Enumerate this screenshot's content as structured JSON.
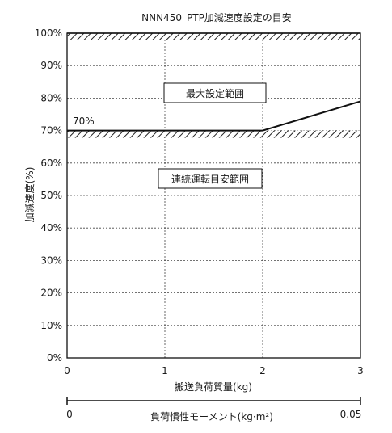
{
  "chart_data": {
    "type": "line",
    "title": "NNN450_PTP加減速度設定の目安",
    "xlabel": "搬送負荷質量(kg)",
    "ylabel": "加減速度(%)",
    "xlim": [
      0,
      3
    ],
    "ylim": [
      0,
      100
    ],
    "x_ticks": [
      "0",
      "1",
      "2",
      "3"
    ],
    "y_ticks": [
      "0%",
      "10%",
      "20%",
      "30%",
      "40%",
      "50%",
      "60%",
      "70%",
      "80%",
      "90%",
      "100%"
    ],
    "grid": "dashed",
    "series": [
      {
        "x": [
          0,
          2,
          3
        ],
        "y": [
          70,
          70,
          79
        ]
      }
    ],
    "hatched_limits": [
      100,
      70
    ],
    "annotations": {
      "value_label": "70%",
      "max_region_label": "最大設定範囲",
      "continuous_region_label": "連続運転目安範囲"
    },
    "secondary_axis": {
      "label": "負荷慣性モーメント(kg·m²)",
      "range": [
        0,
        0.05
      ],
      "min_label": "0",
      "max_label": "0.05"
    }
  }
}
